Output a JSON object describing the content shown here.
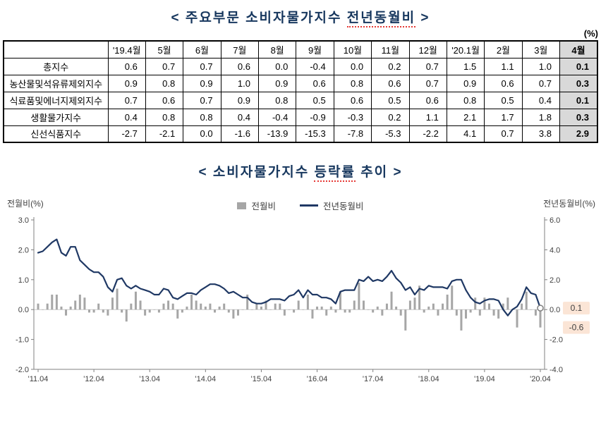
{
  "page": {
    "title1": {
      "prefix": "< 주요부문  소비자물가지수 ",
      "underlined": "전년동월비",
      "suffix": " >"
    },
    "unit": "(%)",
    "title2": {
      "prefix": "< 소비자물가지수 ",
      "underlined": "등락률",
      "suffix": " 추이 >"
    }
  },
  "colors": {
    "title": "#17375e",
    "bar": "#a6a6a6",
    "line": "#1f3864",
    "highlight_column_bg": "#d9d9d9",
    "annotation_bg": "#fbe5d6"
  },
  "chart_data": [
    {
      "type": "table",
      "unit": "(%)",
      "columns": [
        "'19.4월",
        "5월",
        "6월",
        "7월",
        "8월",
        "9월",
        "10월",
        "11월",
        "12월",
        "'20.1월",
        "2월",
        "3월",
        "4월"
      ],
      "highlighted_column": "4월",
      "rows": [
        {
          "label": "총지수",
          "values": [
            "0.6",
            "0.7",
            "0.7",
            "0.6",
            "0.0",
            "-0.4",
            "0.0",
            "0.2",
            "0.7",
            "1.5",
            "1.1",
            "1.0",
            "0.1"
          ]
        },
        {
          "label": "농산물및석유류제외지수",
          "values": [
            "0.9",
            "0.8",
            "0.9",
            "1.0",
            "0.9",
            "0.6",
            "0.8",
            "0.6",
            "0.7",
            "0.9",
            "0.6",
            "0.7",
            "0.3"
          ]
        },
        {
          "label": "식료품및에너지제외지수",
          "values": [
            "0.7",
            "0.6",
            "0.7",
            "0.9",
            "0.8",
            "0.5",
            "0.6",
            "0.5",
            "0.6",
            "0.8",
            "0.5",
            "0.4",
            "0.1"
          ]
        },
        {
          "label": "생활물가지수",
          "values": [
            "0.4",
            "0.8",
            "0.8",
            "0.4",
            "-0.4",
            "-0.9",
            "-0.3",
            "0.2",
            "1.1",
            "2.1",
            "1.7",
            "1.8",
            "0.3"
          ]
        },
        {
          "label": "신선식품지수",
          "values": [
            "-2.7",
            "-2.1",
            "0.0",
            "-1.6",
            "-13.9",
            "-15.3",
            "-7.8",
            "-5.3",
            "-2.2",
            "4.1",
            "0.7",
            "3.8",
            "2.9"
          ]
        }
      ]
    },
    {
      "type": "bar+line",
      "title": "소비자물가지수 등락률 추이",
      "left_axis": {
        "label": "전월비(%)",
        "range": [
          -2.0,
          3.0
        ],
        "ticks": [
          "3.0",
          "2.0",
          "1.0",
          "0.0",
          "-1.0",
          "-2.0"
        ]
      },
      "right_axis": {
        "label": "전년동월비(%)",
        "range": [
          -4.0,
          6.0
        ],
        "ticks": [
          "6.0",
          "4.0",
          "2.0",
          "0.0",
          "-2.0",
          "-4.0"
        ]
      },
      "x_ticks": [
        "'11.04",
        "'12.04",
        "'13.04",
        "'14.04",
        "'15.04",
        "'16.04",
        "'17.04",
        "'18.04",
        "'19.04",
        "'20.04"
      ],
      "x_start": "2011.04",
      "x_end": "2020.04",
      "grid": false,
      "legend_position": "top-center",
      "series": [
        {
          "name": "전월비",
          "type": "bar",
          "axis": "left",
          "color": "#a6a6a6",
          "values": [
            0.2,
            0.0,
            0.2,
            0.5,
            0.5,
            0.1,
            -0.2,
            0.1,
            0.3,
            0.5,
            0.4,
            -0.1,
            -0.1,
            0.2,
            -0.1,
            -0.2,
            0.4,
            0.7,
            -0.1,
            -0.4,
            0.2,
            0.6,
            0.3,
            -0.2,
            -0.1,
            0.0,
            -0.1,
            0.2,
            0.3,
            0.2,
            -0.3,
            -0.1,
            0.1,
            0.5,
            0.3,
            0.2,
            0.1,
            0.2,
            -0.1,
            0.1,
            0.2,
            -0.1,
            -0.3,
            -0.2,
            0.0,
            0.5,
            0.0,
            0.2,
            0.1,
            0.3,
            0.0,
            0.2,
            0.2,
            -0.2,
            0.0,
            -0.1,
            0.3,
            0.0,
            0.5,
            -0.3,
            0.1,
            0.1,
            -0.2,
            0.1,
            -0.1,
            0.6,
            -0.1,
            -0.1,
            0.3,
            0.9,
            0.3,
            0.0,
            -0.1,
            0.1,
            -0.2,
            0.2,
            0.6,
            0.1,
            -0.2,
            -0.7,
            0.3,
            0.4,
            0.8,
            -0.1,
            0.1,
            0.2,
            -0.2,
            0.2,
            0.5,
            0.8,
            -0.2,
            -0.7,
            -0.3,
            -0.1,
            0.4,
            -0.2,
            0.4,
            0.2,
            -0.2,
            -0.3,
            0.2,
            0.4,
            0.0,
            -0.6,
            0.2,
            0.6,
            0.0,
            -0.2,
            -0.6
          ]
        },
        {
          "name": "전년동월비",
          "type": "line",
          "axis": "right",
          "color": "#1f3864",
          "values": [
            3.8,
            3.9,
            4.2,
            4.5,
            4.7,
            3.8,
            3.6,
            4.2,
            4.2,
            3.3,
            3.0,
            2.7,
            2.5,
            2.5,
            2.2,
            1.5,
            1.2,
            2.0,
            2.1,
            1.6,
            1.4,
            1.6,
            1.4,
            1.3,
            1.2,
            1.0,
            1.0,
            1.4,
            1.3,
            0.8,
            0.7,
            0.9,
            1.1,
            1.1,
            1.0,
            1.3,
            1.5,
            1.7,
            1.7,
            1.6,
            1.4,
            1.1,
            1.2,
            1.0,
            0.8,
            0.8,
            0.5,
            0.4,
            0.4,
            0.5,
            0.7,
            0.7,
            0.7,
            0.6,
            0.9,
            1.0,
            1.3,
            0.8,
            1.3,
            1.0,
            1.0,
            0.8,
            0.8,
            0.7,
            0.4,
            1.2,
            1.3,
            1.3,
            1.3,
            2.0,
            1.9,
            2.2,
            1.9,
            2.0,
            1.9,
            2.2,
            2.6,
            2.1,
            1.8,
            1.3,
            1.5,
            1.0,
            1.4,
            1.3,
            1.6,
            1.5,
            1.5,
            1.5,
            1.4,
            1.9,
            2.0,
            2.0,
            1.3,
            0.8,
            0.5,
            0.4,
            0.6,
            0.7,
            0.7,
            0.6,
            0.0,
            -0.4,
            0.0,
            0.2,
            0.7,
            1.5,
            1.1,
            1.0,
            0.1
          ]
        }
      ],
      "end_labels": [
        {
          "series": "전년동월비",
          "text": "0.1"
        },
        {
          "series": "전월비",
          "text": "-0.6"
        }
      ]
    }
  ]
}
